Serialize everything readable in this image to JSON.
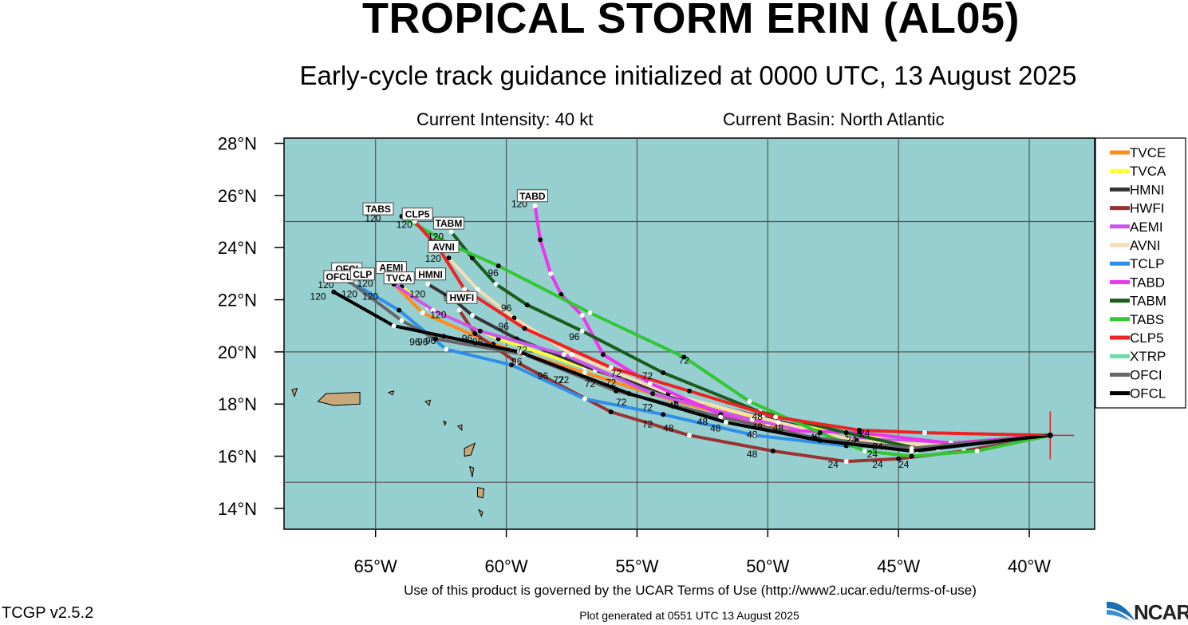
{
  "header": {
    "title": "TROPICAL STORM ERIN (AL05)",
    "subtitle": "Early-cycle track guidance initialized at 0000 UTC, 13 August 2025",
    "intensity": "Current Intensity: 40 kt",
    "basin": "Current Basin: North Atlantic"
  },
  "footer": {
    "terms": "Use of this product is governed by the UCAR Terms of Use (http://www2.ucar.edu/terms-of-use)",
    "version": "TCGP v2.5.2",
    "generated": "Plot generated at 0551 UTC   13 August 2025",
    "logo_text": "NCAR"
  },
  "colors": {
    "ocean": "#96cfcf",
    "land": "#c8a878",
    "grid": "#555555"
  },
  "chart_data": {
    "type": "map",
    "lon_range": [
      -68.5,
      -37.5
    ],
    "lat_range": [
      13.2,
      28.2
    ],
    "lat_ticks": [
      {
        "v": 28,
        "label": "28°N"
      },
      {
        "v": 26,
        "label": "26°N"
      },
      {
        "v": 24,
        "label": "24°N"
      },
      {
        "v": 22,
        "label": "22°N"
      },
      {
        "v": 20,
        "label": "20°N"
      },
      {
        "v": 18,
        "label": "18°N"
      },
      {
        "v": 16,
        "label": "16°N"
      },
      {
        "v": 14,
        "label": "14°N"
      }
    ],
    "lon_ticks": [
      {
        "v": -65,
        "label": "65°W"
      },
      {
        "v": -60,
        "label": "60°W"
      },
      {
        "v": -55,
        "label": "55°W"
      },
      {
        "v": -50,
        "label": "50°W"
      },
      {
        "v": -45,
        "label": "45°W"
      },
      {
        "v": -40,
        "label": "40°W"
      }
    ],
    "grid_lons": [
      -65,
      -60,
      -55,
      -50,
      -45,
      -40
    ],
    "grid_lats": [
      25,
      20,
      15
    ],
    "storm_position": {
      "lon": -39.2,
      "lat": 16.8
    },
    "hour_labels": [
      {
        "text": "24",
        "lon": -46.3,
        "lat": 16.75
      },
      {
        "text": "24",
        "lon": -46.8,
        "lat": 16.5
      },
      {
        "text": "24",
        "lon": -45.8,
        "lat": 16.25
      },
      {
        "text": "24",
        "lon": -46.0,
        "lat": 15.95
      },
      {
        "text": "24",
        "lon": -44.8,
        "lat": 15.55
      },
      {
        "text": "24",
        "lon": -45.8,
        "lat": 15.55
      },
      {
        "text": "24",
        "lon": -47.5,
        "lat": 15.55
      },
      {
        "text": "48",
        "lon": -50.4,
        "lat": 17.4
      },
      {
        "text": "48",
        "lon": -50.4,
        "lat": 17.0
      },
      {
        "text": "48",
        "lon": -49.6,
        "lat": 16.95
      },
      {
        "text": "48",
        "lon": -50.6,
        "lat": 16.7
      },
      {
        "text": "48",
        "lon": -48.2,
        "lat": 16.6
      },
      {
        "text": "48",
        "lon": -52.0,
        "lat": 16.95
      },
      {
        "text": "48",
        "lon": -52.5,
        "lat": 17.2
      },
      {
        "text": "48",
        "lon": -53.6,
        "lat": 17.8
      },
      {
        "text": "48",
        "lon": -53.8,
        "lat": 16.95
      },
      {
        "text": "48",
        "lon": -50.6,
        "lat": 15.95
      },
      {
        "text": "72",
        "lon": -53.2,
        "lat": 19.55
      },
      {
        "text": "72",
        "lon": -54.6,
        "lat": 18.95
      },
      {
        "text": "72",
        "lon": -55.8,
        "lat": 19.05
      },
      {
        "text": "72",
        "lon": -56.0,
        "lat": 18.7
      },
      {
        "text": "72",
        "lon": -56.8,
        "lat": 18.65
      },
      {
        "text": "72",
        "lon": -55.6,
        "lat": 17.95
      },
      {
        "text": "72",
        "lon": -54.6,
        "lat": 17.75
      },
      {
        "text": "72",
        "lon": -54.6,
        "lat": 17.1
      },
      {
        "text": "72",
        "lon": -59.4,
        "lat": 19.95
      },
      {
        "text": "72",
        "lon": -58.0,
        "lat": 18.8
      },
      {
        "text": "72",
        "lon": -57.8,
        "lat": 18.8
      },
      {
        "text": "96",
        "lon": -60.5,
        "lat": 22.9
      },
      {
        "text": "96",
        "lon": -60.0,
        "lat": 21.55
      },
      {
        "text": "96",
        "lon": -60.1,
        "lat": 20.85
      },
      {
        "text": "96",
        "lon": -62.2,
        "lat": 21.95
      },
      {
        "text": "96",
        "lon": -57.4,
        "lat": 20.45
      },
      {
        "text": "96",
        "lon": -61.5,
        "lat": 20.4
      },
      {
        "text": "96",
        "lon": -61.1,
        "lat": 20.25
      },
      {
        "text": "96",
        "lon": -63.5,
        "lat": 20.25
      },
      {
        "text": "96",
        "lon": -63.2,
        "lat": 20.25
      },
      {
        "text": "96",
        "lon": -62.9,
        "lat": 20.3
      },
      {
        "text": "96",
        "lon": -59.6,
        "lat": 19.5
      },
      {
        "text": "96",
        "lon": -58.6,
        "lat": 18.95
      },
      {
        "text": "120",
        "lon": -65.1,
        "lat": 25.0
      },
      {
        "text": "120",
        "lon": -63.9,
        "lat": 24.75
      },
      {
        "text": "120",
        "lon": -62.7,
        "lat": 24.3
      },
      {
        "text": "120",
        "lon": -62.8,
        "lat": 23.45
      },
      {
        "text": "120",
        "lon": -59.5,
        "lat": 25.55
      },
      {
        "text": "120",
        "lon": -66.9,
        "lat": 22.45
      },
      {
        "text": "120",
        "lon": -67.2,
        "lat": 22.0
      },
      {
        "text": "120",
        "lon": -66.0,
        "lat": 22.1
      },
      {
        "text": "120",
        "lon": -65.4,
        "lat": 22.5
      },
      {
        "text": "120",
        "lon": -65.2,
        "lat": 22.0
      },
      {
        "text": "120",
        "lon": -63.4,
        "lat": 22.1
      },
      {
        "text": "120",
        "lon": -62.6,
        "lat": 21.3
      }
    ],
    "end_labels": [
      {
        "text": "TABS",
        "lon": -64.9,
        "lat": 25.35
      },
      {
        "text": "CLP5",
        "lon": -63.4,
        "lat": 25.15
      },
      {
        "text": "TABM",
        "lon": -62.2,
        "lat": 24.8
      },
      {
        "text": "AVNI",
        "lon": -62.4,
        "lat": 23.9
      },
      {
        "text": "TABD",
        "lon": -59.0,
        "lat": 25.85
      },
      {
        "text": "OFCI",
        "lon": -66.1,
        "lat": 23.05
      },
      {
        "text": "OFCL",
        "lon": -66.4,
        "lat": 22.75
      },
      {
        "text": "CLP",
        "lon": -65.5,
        "lat": 22.85
      },
      {
        "text": "AEMI",
        "lon": -64.4,
        "lat": 23.1
      },
      {
        "text": "TVCA",
        "lon": -64.1,
        "lat": 22.7
      },
      {
        "text": "HMNI",
        "lon": -62.9,
        "lat": 22.85
      },
      {
        "text": "HWFI",
        "lon": -61.7,
        "lat": 21.95
      }
    ],
    "series": [
      {
        "name": "TVCE",
        "color": "#ff8c1a",
        "points": [
          [
            -39.2,
            16.8
          ],
          [
            -44.0,
            16.3
          ],
          [
            -47.0,
            16.9
          ],
          [
            -50.0,
            17.2
          ],
          [
            -53.5,
            18.1
          ],
          [
            -57.0,
            19.2
          ],
          [
            -60.5,
            20.3
          ],
          [
            -63.2,
            21.5
          ],
          [
            -64.3,
            22.6
          ]
        ]
      },
      {
        "name": "TVCA",
        "color": "#ffff33",
        "points": [
          [
            -39.2,
            16.8
          ],
          [
            -44.0,
            16.4
          ],
          [
            -47.0,
            16.9
          ],
          [
            -50.0,
            17.3
          ],
          [
            -53.5,
            18.3
          ],
          [
            -57.0,
            19.4
          ],
          [
            -60.3,
            20.5
          ],
          [
            -63.0,
            21.7
          ],
          [
            -64.0,
            22.5
          ]
        ]
      },
      {
        "name": "HMNI",
        "color": "#333333",
        "points": [
          [
            -39.2,
            16.8
          ],
          [
            -44.3,
            16.2
          ],
          [
            -47.0,
            16.7
          ],
          [
            -50.2,
            17.5
          ],
          [
            -53.6,
            18.3
          ],
          [
            -56.6,
            19.3
          ],
          [
            -59.6,
            20.5
          ],
          [
            -61.3,
            21.4
          ],
          [
            -62.0,
            22.0
          ],
          [
            -63.0,
            22.6
          ]
        ]
      },
      {
        "name": "HWFI",
        "color": "#993333",
        "points": [
          [
            -39.2,
            16.8
          ],
          [
            -42.5,
            16.2
          ],
          [
            -45.0,
            15.9
          ],
          [
            -47.0,
            15.8
          ],
          [
            -49.8,
            16.2
          ],
          [
            -53.0,
            16.8
          ],
          [
            -56.0,
            17.7
          ],
          [
            -59.6,
            19.6
          ],
          [
            -61.2,
            20.7
          ],
          [
            -61.8,
            21.6
          ]
        ]
      },
      {
        "name": "AEMI",
        "color": "#cc55ee",
        "points": [
          [
            -39.2,
            16.8
          ],
          [
            -43.0,
            16.5
          ],
          [
            -47.0,
            16.7
          ],
          [
            -50.6,
            17.4
          ],
          [
            -54.4,
            18.4
          ],
          [
            -57.8,
            19.9
          ],
          [
            -61.0,
            20.8
          ],
          [
            -62.8,
            21.6
          ],
          [
            -64.3,
            22.6
          ]
        ]
      },
      {
        "name": "AVNI",
        "color": "#f5deb3",
        "points": [
          [
            -39.2,
            16.8
          ],
          [
            -43.0,
            16.4
          ],
          [
            -46.6,
            16.6
          ],
          [
            -49.6,
            17.3
          ],
          [
            -53.8,
            18.4
          ],
          [
            -57.5,
            19.9
          ],
          [
            -59.7,
            21.3
          ],
          [
            -61.1,
            22.4
          ],
          [
            -62.2,
            23.6
          ]
        ]
      },
      {
        "name": "TCLP",
        "color": "#2f8fe8",
        "points": [
          [
            -39.2,
            16.8
          ],
          [
            -43.5,
            16.3
          ],
          [
            -47.0,
            16.4
          ],
          [
            -50.5,
            16.8
          ],
          [
            -54.0,
            17.6
          ],
          [
            -57.0,
            18.2
          ],
          [
            -59.8,
            19.5
          ],
          [
            -62.3,
            20.1
          ],
          [
            -64.1,
            21.6
          ],
          [
            -65.8,
            22.6
          ]
        ]
      },
      {
        "name": "TABD",
        "color": "#ee33ee",
        "points": [
          [
            -39.2,
            16.8
          ],
          [
            -43.0,
            16.5
          ],
          [
            -46.5,
            16.9
          ],
          [
            -49.7,
            17.0
          ],
          [
            -51.8,
            17.6
          ],
          [
            -54.5,
            18.8
          ],
          [
            -56.3,
            19.9
          ],
          [
            -57.1,
            21.4
          ],
          [
            -57.9,
            22.2
          ],
          [
            -58.3,
            23.0
          ],
          [
            -58.7,
            24.3
          ],
          [
            -58.9,
            25.6
          ]
        ]
      },
      {
        "name": "TABM",
        "color": "#1a5c1a",
        "points": [
          [
            -39.2,
            16.8
          ],
          [
            -44.3,
            16.3
          ],
          [
            -47.0,
            16.9
          ],
          [
            -50.3,
            17.7
          ],
          [
            -54.0,
            19.2
          ],
          [
            -57.1,
            20.8
          ],
          [
            -59.2,
            21.8
          ],
          [
            -60.4,
            22.6
          ],
          [
            -61.3,
            23.6
          ],
          [
            -62.1,
            24.6
          ]
        ]
      },
      {
        "name": "TABS",
        "color": "#33c633",
        "points": [
          [
            -39.2,
            16.8
          ],
          [
            -42.0,
            16.2
          ],
          [
            -44.5,
            16.0
          ],
          [
            -46.3,
            16.2
          ],
          [
            -48.0,
            16.9
          ],
          [
            -50.7,
            18.1
          ],
          [
            -53.2,
            19.8
          ],
          [
            -56.8,
            21.5
          ],
          [
            -60.3,
            23.3
          ],
          [
            -62.1,
            24.1
          ],
          [
            -64.0,
            25.2
          ]
        ]
      },
      {
        "name": "CLP5",
        "color": "#ee2222",
        "points": [
          [
            -39.2,
            16.8
          ],
          [
            -44.0,
            16.9
          ],
          [
            -46.5,
            17.0
          ],
          [
            -49.7,
            17.5
          ],
          [
            -53.0,
            18.5
          ],
          [
            -56.0,
            19.4
          ],
          [
            -59.3,
            20.9
          ],
          [
            -61.6,
            22.4
          ],
          [
            -62.6,
            24.0
          ],
          [
            -63.5,
            25.0
          ]
        ]
      },
      {
        "name": "XTRP",
        "color": "#66ddaa",
        "points": []
      },
      {
        "name": "OFCI",
        "color": "#666666",
        "points": [
          [
            -39.2,
            16.8
          ],
          [
            -44.5,
            16.3
          ],
          [
            -48.2,
            16.7
          ],
          [
            -51.8,
            17.5
          ],
          [
            -55.8,
            18.5
          ],
          [
            -59.3,
            19.9
          ],
          [
            -62.7,
            20.5
          ],
          [
            -64.0,
            21.2
          ],
          [
            -66.0,
            22.7
          ]
        ]
      },
      {
        "name": "OFCL",
        "color": "#000000",
        "points": [
          [
            -39.2,
            16.8
          ],
          [
            -44.5,
            16.2
          ],
          [
            -48.0,
            16.6
          ],
          [
            -51.6,
            17.3
          ],
          [
            -55.3,
            18.4
          ],
          [
            -59.5,
            20.0
          ],
          [
            -62.4,
            20.6
          ],
          [
            -64.3,
            21.0
          ],
          [
            -66.6,
            22.3
          ]
        ]
      }
    ]
  }
}
